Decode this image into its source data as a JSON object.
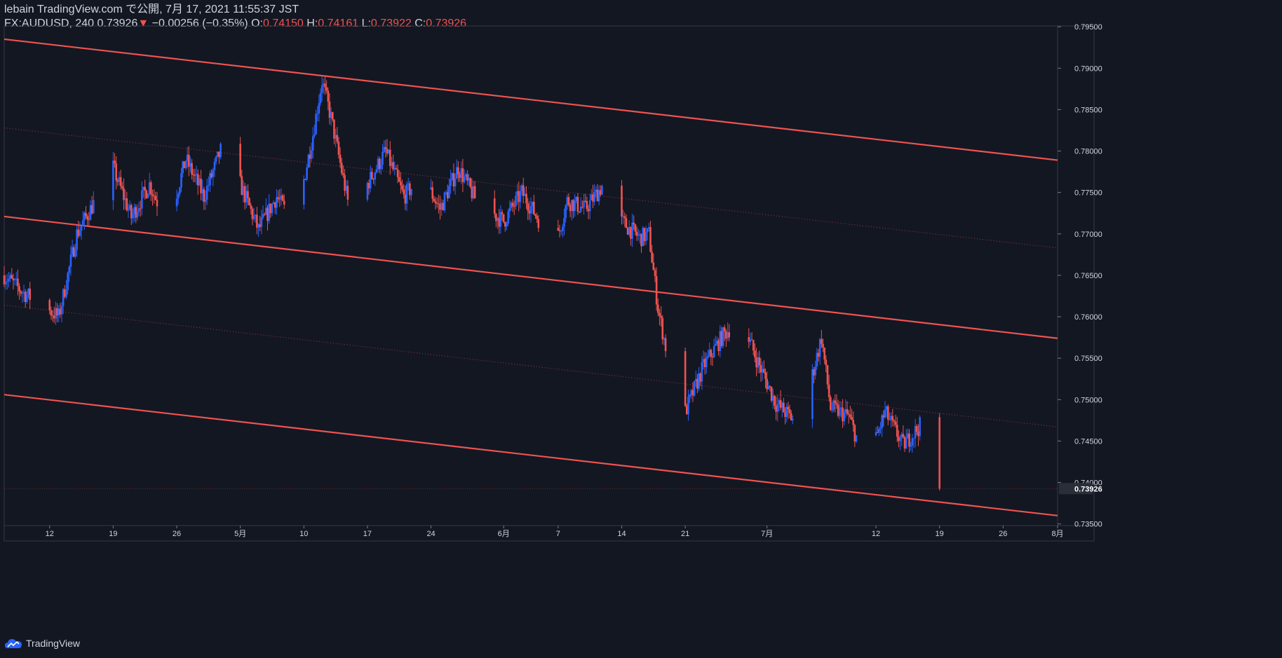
{
  "header": {
    "line1": "lebain TradingView.com で公開, 7月 17, 2021 11:55:37 JST",
    "symbol": "FX:AUDUSD, 240",
    "last": "0.73926",
    "change_arrow": "▼",
    "change": "−0.00256 (−0.35%)",
    "o_label": "O:",
    "o_value": "0.74150",
    "h_label": "H:",
    "h_value": "0.74161",
    "l_label": "L:",
    "l_value": "0.73922",
    "c_label": "C:",
    "c_value": "0.73926"
  },
  "footer": {
    "brand": "TradingView",
    "icon": "tradingview-cloud-icon"
  },
  "colors": {
    "background": "#131722",
    "up": "#2962ff",
    "down": "#ef5350",
    "channel": "#ef5350",
    "axis_text": "#d1d4dc",
    "price_tag_bg": "#2a2e39"
  },
  "chart_data": {
    "type": "candlestick",
    "symbol": "FX:AUDUSD",
    "interval": "240",
    "current_price": 0.73926,
    "current_price_label": "0.73926",
    "y_range": [
      0.7348,
      0.7951
    ],
    "y_ticks": [
      "0.79500",
      "0.79000",
      "0.78500",
      "0.78000",
      "0.77500",
      "0.77000",
      "0.76500",
      "0.76000",
      "0.75500",
      "0.75000",
      "0.74500",
      "0.74000",
      "0.73500"
    ],
    "x_range": [
      "2021-04-07",
      "2021-08-01"
    ],
    "x_ticks": [
      {
        "date": "2021-04-12",
        "label": "12"
      },
      {
        "date": "2021-04-19",
        "label": "19"
      },
      {
        "date": "2021-04-26",
        "label": "26"
      },
      {
        "date": "2021-05-03",
        "label": "5月"
      },
      {
        "date": "2021-05-10",
        "label": "10"
      },
      {
        "date": "2021-05-17",
        "label": "17"
      },
      {
        "date": "2021-05-24",
        "label": "24"
      },
      {
        "date": "2021-06-01",
        "label": "6月"
      },
      {
        "date": "2021-06-07",
        "label": "7"
      },
      {
        "date": "2021-06-14",
        "label": "14"
      },
      {
        "date": "2021-06-21",
        "label": "21"
      },
      {
        "date": "2021-06-30",
        "label": "7月"
      },
      {
        "date": "2021-07-12",
        "label": "12"
      },
      {
        "date": "2021-07-19",
        "label": "19"
      },
      {
        "date": "2021-07-26",
        "label": "26"
      },
      {
        "date": "2021-08-01",
        "label": "8月"
      }
    ],
    "closes_path": [
      {
        "date": "2021-04-07",
        "close": 0.765
      },
      {
        "date": "2021-04-09",
        "close": 0.763
      },
      {
        "date": "2021-04-11",
        "close": 0.7615
      },
      {
        "date": "2021-04-13",
        "close": 0.76
      },
      {
        "date": "2021-04-15",
        "close": 0.77
      },
      {
        "date": "2021-04-17",
        "close": 0.774
      },
      {
        "date": "2021-04-19",
        "close": 0.778
      },
      {
        "date": "2021-04-21",
        "close": 0.772
      },
      {
        "date": "2021-04-23",
        "close": 0.776
      },
      {
        "date": "2021-04-25",
        "close": 0.771
      },
      {
        "date": "2021-04-27",
        "close": 0.779
      },
      {
        "date": "2021-04-29",
        "close": 0.7745
      },
      {
        "date": "2021-05-01",
        "close": 0.7805
      },
      {
        "date": "2021-05-03",
        "close": 0.776
      },
      {
        "date": "2021-05-05",
        "close": 0.7705
      },
      {
        "date": "2021-05-07",
        "close": 0.7745
      },
      {
        "date": "2021-05-09",
        "close": 0.771
      },
      {
        "date": "2021-05-11",
        "close": 0.782
      },
      {
        "date": "2021-05-12",
        "close": 0.7885
      },
      {
        "date": "2021-05-13",
        "close": 0.784
      },
      {
        "date": "2021-05-15",
        "close": 0.773
      },
      {
        "date": "2021-05-17",
        "close": 0.776
      },
      {
        "date": "2021-05-19",
        "close": 0.78
      },
      {
        "date": "2021-05-21",
        "close": 0.7745
      },
      {
        "date": "2021-05-23",
        "close": 0.777
      },
      {
        "date": "2021-05-25",
        "close": 0.773
      },
      {
        "date": "2021-05-27",
        "close": 0.778
      },
      {
        "date": "2021-05-29",
        "close": 0.774
      },
      {
        "date": "2021-06-01",
        "close": 0.7715
      },
      {
        "date": "2021-06-03",
        "close": 0.775
      },
      {
        "date": "2021-06-05",
        "close": 0.7715
      },
      {
        "date": "2021-06-06",
        "close": 0.7655
      },
      {
        "date": "2021-06-08",
        "close": 0.774
      },
      {
        "date": "2021-06-10",
        "close": 0.773
      },
      {
        "date": "2021-06-12",
        "close": 0.776
      },
      {
        "date": "2021-06-14",
        "close": 0.7715
      },
      {
        "date": "2021-06-16",
        "close": 0.7695
      },
      {
        "date": "2021-06-17",
        "close": 0.77
      },
      {
        "date": "2021-06-18",
        "close": 0.761
      },
      {
        "date": "2021-06-19",
        "close": 0.7555
      },
      {
        "date": "2021-06-21",
        "close": 0.7485
      },
      {
        "date": "2021-06-23",
        "close": 0.754
      },
      {
        "date": "2021-06-25",
        "close": 0.7575
      },
      {
        "date": "2021-06-27",
        "close": 0.76
      },
      {
        "date": "2021-06-29",
        "close": 0.7545
      },
      {
        "date": "2021-07-01",
        "close": 0.7495
      },
      {
        "date": "2021-07-03",
        "close": 0.7475
      },
      {
        "date": "2021-07-05",
        "close": 0.753
      },
      {
        "date": "2021-07-06",
        "close": 0.7575
      },
      {
        "date": "2021-07-07",
        "close": 0.749
      },
      {
        "date": "2021-07-09",
        "close": 0.748
      },
      {
        "date": "2021-07-11",
        "close": 0.742
      },
      {
        "date": "2021-07-13",
        "close": 0.7485
      },
      {
        "date": "2021-07-15",
        "close": 0.7445
      },
      {
        "date": "2021-07-17",
        "close": 0.747
      },
      {
        "date": "2021-07-18",
        "close": 0.7425
      },
      {
        "date": "2021-07-19",
        "close": 0.73926
      }
    ],
    "channel_lines": [
      {
        "name": "upper",
        "style": "solid",
        "start": {
          "date": "2021-04-07",
          "price": 0.7935
        },
        "end": {
          "date": "2021-08-01",
          "price": 0.7789
        }
      },
      {
        "name": "middle-upper",
        "style": "dotted",
        "start": {
          "date": "2021-04-07",
          "price": 0.7828
        },
        "end": {
          "date": "2021-08-01",
          "price": 0.7683
        }
      },
      {
        "name": "middle",
        "style": "solid",
        "start": {
          "date": "2021-04-07",
          "price": 0.7721
        },
        "end": {
          "date": "2021-08-01",
          "price": 0.7574
        }
      },
      {
        "name": "middle-lower",
        "style": "dotted",
        "start": {
          "date": "2021-04-07",
          "price": 0.7614
        },
        "end": {
          "date": "2021-08-01",
          "price": 0.7467
        }
      },
      {
        "name": "lower",
        "style": "solid",
        "start": {
          "date": "2021-04-07",
          "price": 0.7506
        },
        "end": {
          "date": "2021-08-01",
          "price": 0.736
        }
      }
    ],
    "grid": false,
    "legend": "top-left"
  }
}
